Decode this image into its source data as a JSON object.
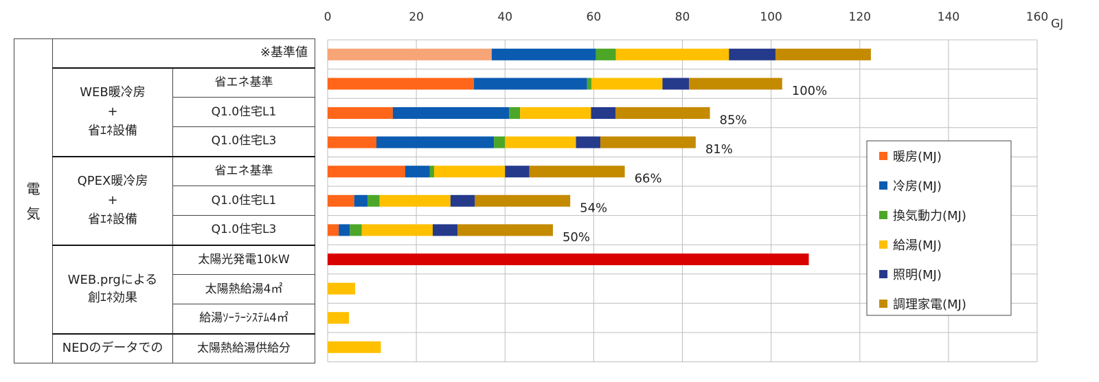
{
  "table": {
    "category": "電気",
    "kijun_label": "※基準値",
    "groups": [
      {
        "label_lines": [
          "WEB暖冷房",
          "+",
          "省ｴﾈ設備"
        ],
        "rows": [
          "省エネ基準",
          "Q1.0住宅L1",
          "Q1.0住宅L3"
        ]
      },
      {
        "label_lines": [
          "QPEX暖冷房",
          "+",
          "省ｴﾈ設備"
        ],
        "rows": [
          "省エネ基準",
          "Q1.0住宅L1",
          "Q1.0住宅L3"
        ]
      },
      {
        "label_lines": [
          "WEB.prgによる",
          "創ｴﾈ効果"
        ],
        "rows": [
          "太陽光発電10kW",
          "太陽熱給湯4㎡",
          "給湯ｿｰﾗｰｼｽﾃﾑ4㎡"
        ]
      }
    ],
    "ned_label": "NEDのデータでの",
    "ned_row": "太陽熱給湯供給分"
  },
  "chart_data": {
    "type": "stacked-bar-horizontal",
    "unit": "GJ",
    "xlim": [
      0,
      160
    ],
    "xticks": [
      0,
      20,
      40,
      60,
      80,
      100,
      120,
      140,
      160
    ],
    "gridlines": true,
    "legend_position": "right",
    "series_names": [
      "暖房(MJ)",
      "冷房(MJ)",
      "換気動力(MJ)",
      "給湯(MJ)",
      "照明(MJ)",
      "調理家電(MJ)"
    ],
    "series_colors": [
      "#FF6619",
      "#0B5BB0",
      "#4CA628",
      "#FFC000",
      "#263A8C",
      "#C48A00"
    ],
    "rows": [
      {
        "name": "※基準値",
        "values": [
          37,
          23.5,
          4.5,
          25.5,
          10.5,
          21.5
        ],
        "first_color": "#F7A577",
        "label": ""
      },
      {
        "name": "WEB暖冷房+省ｴﾈ設備 省エネ基準",
        "values": [
          33,
          25.5,
          1,
          16,
          6,
          21
        ],
        "label": "100%"
      },
      {
        "name": "WEB暖冷房+省ｴﾈ設備 Q1.0住宅L1",
        "values": [
          14.7,
          26.2,
          2.5,
          16,
          5.5,
          21.3
        ],
        "label": "85%"
      },
      {
        "name": "WEB暖冷房+省ｴﾈ設備 Q1.0住宅L3",
        "values": [
          11,
          26.5,
          2.5,
          16,
          5.5,
          21.5
        ],
        "label": "81%"
      },
      {
        "name": "QPEX暖冷房+省ｴﾈ設備 省エネ基準",
        "values": [
          17.5,
          5.5,
          1,
          16,
          5.5,
          21.5
        ],
        "label": "66%"
      },
      {
        "name": "QPEX暖冷房+省ｴﾈ設備 Q1.0住宅L1",
        "values": [
          6,
          3,
          2.7,
          16,
          5.5,
          21.5
        ],
        "label": "54%"
      },
      {
        "name": "QPEX暖冷房+省ｴﾈ設備 Q1.0住宅L3",
        "values": [
          2.5,
          2.5,
          2.7,
          16,
          5.6,
          21.5
        ],
        "label": "50%"
      },
      {
        "name": "WEB.prgによる創ｴﾈ効果 太陽光発電10kW",
        "values": [
          108.5
        ],
        "colors": [
          "#D90000"
        ],
        "label": ""
      },
      {
        "name": "WEB.prgによる創ｴﾈ効果 太陽熱給湯4㎡",
        "values": [
          6.2
        ],
        "colors": [
          "#FFC000"
        ],
        "label": ""
      },
      {
        "name": "WEB.prgによる創ｴﾈ効果 給湯ｿｰﾗｰｼｽﾃﾑ4㎡",
        "values": [
          4.8
        ],
        "colors": [
          "#FFC000"
        ],
        "label": ""
      },
      {
        "name": "NEDのデータでの 太陽熱給湯供給分",
        "values": [
          12
        ],
        "colors": [
          "#FFC000"
        ],
        "label": ""
      }
    ]
  }
}
